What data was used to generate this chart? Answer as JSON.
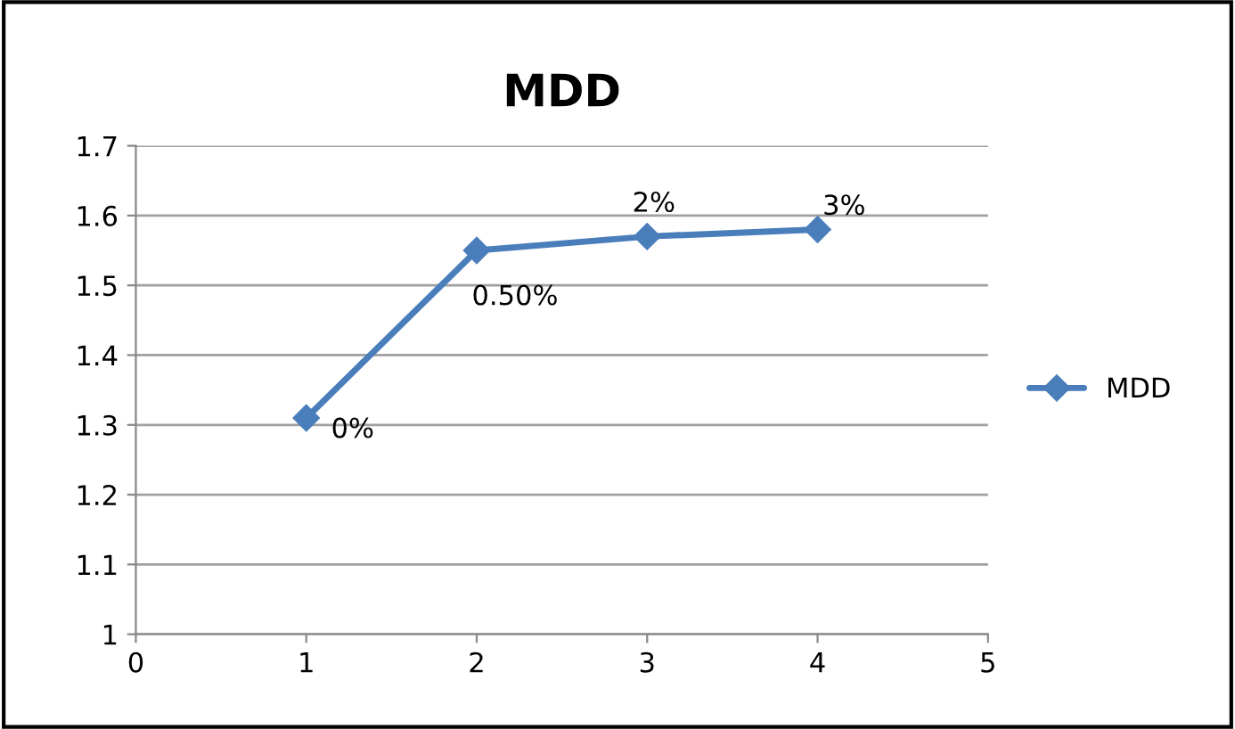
{
  "chart_data": {
    "type": "line",
    "title": "MDD",
    "x": [
      1,
      2,
      3,
      4
    ],
    "series": [
      {
        "name": "MDD",
        "color": "#4a7ebb",
        "values": [
          1.31,
          1.55,
          1.57,
          1.58
        ]
      }
    ],
    "annotations": [
      {
        "text": "0%",
        "x": 1,
        "y": 1.31
      },
      {
        "text": "0.50%",
        "x": 2,
        "y": 1.55
      },
      {
        "text": "2%",
        "x": 3,
        "y": 1.57
      },
      {
        "text": "3%",
        "x": 4,
        "y": 1.58
      }
    ],
    "xlim": [
      0,
      5
    ],
    "xticks": [
      0,
      1,
      2,
      3,
      4,
      5
    ],
    "ylim": [
      1,
      1.7
    ],
    "yticks": [
      1,
      1.1,
      1.2,
      1.3,
      1.4,
      1.5,
      1.6,
      1.7
    ],
    "grid": "y",
    "legend": "right",
    "marker": "diamond",
    "line_style": "solid"
  }
}
